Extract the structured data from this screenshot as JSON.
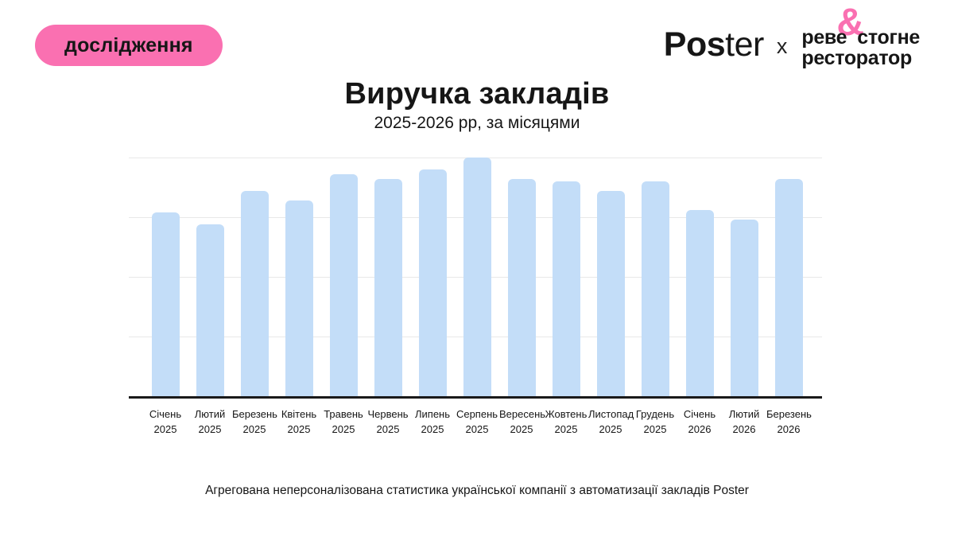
{
  "badge": {
    "label": "дослідження"
  },
  "logos": {
    "poster_bold": "Pos",
    "poster_light": "ter",
    "separator": "x",
    "partner_line1_left": "реве",
    "partner_ampersand": "&",
    "partner_line1_right": "стогне",
    "partner_line2": "ресторатор"
  },
  "title": "Виручка закладів",
  "subtitle": "2025-2026 рр, за місяцями",
  "footer": "Агрегована неперсоналізована статистика української компанії з автоматизації закладів Poster",
  "colors": {
    "accent_pink": "#FA70B1",
    "bar_blue": "#C3DDF8",
    "gridline": "#e8e8e8",
    "axis": "#1a1a1a",
    "text": "#161616"
  },
  "chart_data": {
    "type": "bar",
    "title": "Виручка закладів",
    "subtitle": "2025-2026 рр, за місяцями",
    "categories": [
      {
        "month": "Січень",
        "year": "2025"
      },
      {
        "month": "Лютий",
        "year": "2025"
      },
      {
        "month": "Березень",
        "year": "2025"
      },
      {
        "month": "Квітень",
        "year": "2025"
      },
      {
        "month": "Травень",
        "year": "2025"
      },
      {
        "month": "Червень",
        "year": "2025"
      },
      {
        "month": "Липень",
        "year": "2025"
      },
      {
        "month": "Серпень",
        "year": "2025"
      },
      {
        "month": "Вересень",
        "year": "2025"
      },
      {
        "month": "Жовтень",
        "year": "2025"
      },
      {
        "month": "Листопад",
        "year": "2025"
      },
      {
        "month": "Грудень",
        "year": "2025"
      },
      {
        "month": "Січень",
        "year": "2026"
      },
      {
        "month": "Лютий",
        "year": "2026"
      },
      {
        "month": "Березень",
        "year": "2026"
      }
    ],
    "values": [
      77,
      72,
      86,
      82,
      93,
      91,
      95,
      100,
      91,
      90,
      86,
      90,
      78,
      74,
      91
    ],
    "values_note": "relative scale estimated from bar heights; no y-axis tick labels are shown in the figure",
    "xlabel": "",
    "ylabel": "",
    "ylim": [
      0,
      100
    ],
    "y_axis_labels": "none",
    "grid": true,
    "gridline_values": [
      25,
      50,
      75,
      100
    ],
    "legend": "none",
    "bar_color": "#C3DDF8"
  }
}
